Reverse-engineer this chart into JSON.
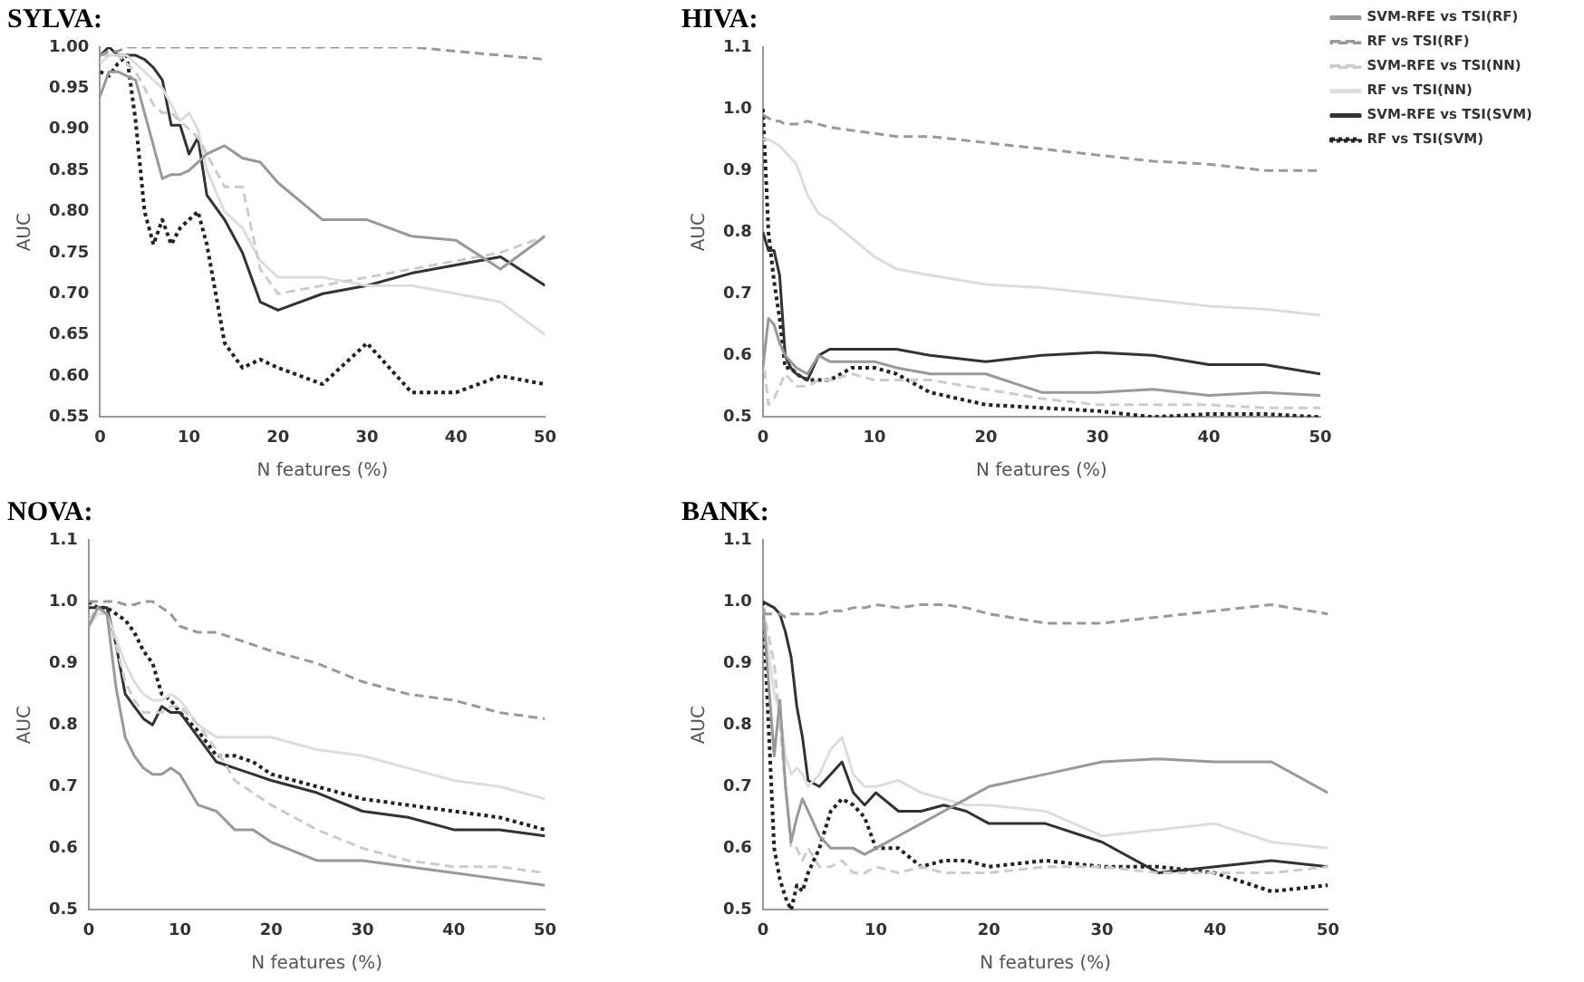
{
  "chart_data": [
    {
      "type": "line",
      "title": "SYLVA:",
      "xlabel": "N features (%)",
      "ylabel": "AUC",
      "x": [
        0,
        1,
        2,
        3,
        4,
        5,
        6,
        7,
        8,
        9,
        10,
        11,
        12,
        14,
        16,
        18,
        20,
        25,
        30,
        35,
        40,
        45,
        50
      ],
      "xlim": [
        0,
        50
      ],
      "xticks": [
        0,
        10,
        20,
        30,
        40,
        50
      ],
      "ylim": [
        0.55,
        1.0
      ],
      "yticks": [
        0.55,
        {
          "value": 0.6,
          "label": "0.60"
        },
        0.65,
        {
          "value": 0.7,
          "label": "0.70"
        },
        0.75,
        {
          "value": 0.8,
          "label": "0.80"
        },
        0.85,
        {
          "value": 0.9,
          "label": "0.90"
        },
        0.95,
        {
          "value": 1.0,
          "label": "1.00"
        }
      ],
      "grid": false,
      "legend": false,
      "marker": "none",
      "series": [
        {
          "color": "#999999",
          "line_style": "solid",
          "values": [
            0.94,
            0.97,
            0.97,
            0.965,
            0.96,
            0.92,
            0.88,
            0.84,
            0.845,
            0.845,
            0.85,
            0.86,
            0.87,
            0.88,
            0.865,
            0.86,
            0.835,
            0.79,
            0.79,
            0.77,
            0.765,
            0.73,
            0.77
          ]
        },
        {
          "color": "#999999",
          "line_style": "dashed",
          "values": [
            0.99,
            0.995,
            0.995,
            1.0,
            1.0,
            1.0,
            1.0,
            1.0,
            1.0,
            1.0,
            1.0,
            1.0,
            1.0,
            1.0,
            1.0,
            1.0,
            1.0,
            1.0,
            1.0,
            1.0,
            0.995,
            0.99,
            0.985
          ]
        },
        {
          "color": "#cccccc",
          "line_style": "dashed",
          "values": [
            0.99,
            0.99,
            0.99,
            0.98,
            0.97,
            0.95,
            0.93,
            0.92,
            0.92,
            0.91,
            0.9,
            0.89,
            0.87,
            0.83,
            0.83,
            0.73,
            0.7,
            0.71,
            0.72,
            0.73,
            0.74,
            0.75,
            0.77
          ]
        },
        {
          "color": "#dddddd",
          "line_style": "solid",
          "values": [
            0.98,
            0.99,
            0.99,
            0.99,
            0.98,
            0.97,
            0.96,
            0.95,
            0.93,
            0.91,
            0.92,
            0.9,
            0.85,
            0.8,
            0.78,
            0.74,
            0.72,
            0.72,
            0.71,
            0.71,
            0.7,
            0.69,
            0.65
          ]
        },
        {
          "color": "#333333",
          "line_style": "solid",
          "values": [
            0.99,
            1.0,
            0.99,
            0.99,
            0.99,
            0.985,
            0.975,
            0.96,
            0.905,
            0.905,
            0.87,
            0.89,
            0.82,
            0.79,
            0.75,
            0.69,
            0.68,
            0.7,
            0.71,
            0.725,
            0.735,
            0.745,
            0.71
          ]
        },
        {
          "color": "#222222",
          "line_style": "dotted",
          "values": [
            0.97,
            0.965,
            0.98,
            0.99,
            0.91,
            0.8,
            0.76,
            0.79,
            0.76,
            0.78,
            0.79,
            0.8,
            0.76,
            0.64,
            0.61,
            0.62,
            0.61,
            0.59,
            0.64,
            0.58,
            0.58,
            0.6,
            0.59
          ]
        }
      ]
    },
    {
      "type": "line",
      "title": "HIVA:",
      "xlabel": "N features (%)",
      "ylabel": "AUC",
      "x": [
        0,
        0.5,
        1,
        1.5,
        2,
        2.5,
        3,
        4,
        5,
        6,
        8,
        10,
        12,
        15,
        20,
        25,
        30,
        35,
        40,
        45,
        50
      ],
      "xlim": [
        0,
        50
      ],
      "xticks": [
        0,
        10,
        20,
        30,
        40,
        50
      ],
      "ylim": [
        0.5,
        1.1
      ],
      "yticks": [
        0.5,
        0.6,
        0.7,
        0.8,
        0.9,
        {
          "value": 1.0,
          "label": "1.0"
        },
        1.1
      ],
      "grid": false,
      "legend": "top right",
      "marker": "none",
      "series": [
        {
          "name": "SVM-RFE vs TSI(RF)",
          "color": "#999999",
          "line_style": "solid",
          "values": [
            0.58,
            0.66,
            0.65,
            0.62,
            0.6,
            0.59,
            0.58,
            0.57,
            0.6,
            0.59,
            0.59,
            0.59,
            0.58,
            0.57,
            0.57,
            0.54,
            0.54,
            0.545,
            0.535,
            0.54,
            0.535
          ]
        },
        {
          "name": "RF vs TSI(RF)",
          "color": "#999999",
          "line_style": "dashed",
          "values": [
            0.99,
            0.985,
            0.98,
            0.98,
            0.975,
            0.975,
            0.975,
            0.98,
            0.975,
            0.97,
            0.965,
            0.96,
            0.955,
            0.955,
            0.945,
            0.935,
            0.925,
            0.915,
            0.91,
            0.9,
            0.9
          ]
        },
        {
          "name": "SVM-RFE vs TSI(NN)",
          "color": "#cccccc",
          "line_style": "dashed",
          "values": [
            0.6,
            0.52,
            0.53,
            0.55,
            0.57,
            0.56,
            0.55,
            0.55,
            0.56,
            0.56,
            0.57,
            0.56,
            0.56,
            0.56,
            0.545,
            0.53,
            0.52,
            0.52,
            0.52,
            0.515,
            0.515
          ]
        },
        {
          "name": "RF vs TSI(NN)",
          "color": "#dddddd",
          "line_style": "solid",
          "values": [
            0.95,
            0.95,
            0.945,
            0.94,
            0.93,
            0.92,
            0.91,
            0.86,
            0.83,
            0.82,
            0.79,
            0.76,
            0.74,
            0.73,
            0.715,
            0.71,
            0.7,
            0.69,
            0.68,
            0.675,
            0.665
          ]
        },
        {
          "name": "SVM-RFE vs TSI(SVM)",
          "color": "#333333",
          "line_style": "solid",
          "values": [
            0.8,
            0.77,
            0.77,
            0.73,
            0.6,
            0.58,
            0.57,
            0.56,
            0.6,
            0.61,
            0.61,
            0.61,
            0.61,
            0.6,
            0.59,
            0.6,
            0.605,
            0.6,
            0.585,
            0.585,
            0.57
          ]
        },
        {
          "name": "RF vs TSI(SVM)",
          "color": "#222222",
          "line_style": "dotted",
          "values": [
            1.0,
            0.8,
            0.72,
            0.66,
            0.58,
            0.58,
            0.57,
            0.56,
            0.56,
            0.56,
            0.58,
            0.58,
            0.57,
            0.54,
            0.52,
            0.515,
            0.51,
            0.5,
            0.505,
            0.505,
            0.5
          ]
        }
      ]
    },
    {
      "type": "line",
      "title": "NOVA:",
      "xlabel": "N features (%)",
      "ylabel": "AUC",
      "x": [
        0,
        1,
        2,
        3,
        4,
        5,
        6,
        7,
        8,
        9,
        10,
        12,
        14,
        16,
        18,
        20,
        25,
        30,
        35,
        40,
        45,
        50
      ],
      "xlim": [
        0,
        50
      ],
      "xticks": [
        0,
        10,
        20,
        30,
        40,
        50
      ],
      "ylim": [
        0.5,
        1.1
      ],
      "yticks": [
        0.5,
        0.6,
        0.7,
        0.8,
        0.9,
        {
          "value": 1.0,
          "label": "1.0"
        },
        1.1
      ],
      "grid": false,
      "legend": false,
      "marker": "none",
      "series": [
        {
          "color": "#999999",
          "line_style": "solid",
          "values": [
            0.96,
            0.99,
            0.98,
            0.86,
            0.78,
            0.75,
            0.73,
            0.72,
            0.72,
            0.73,
            0.72,
            0.67,
            0.66,
            0.63,
            0.63,
            0.61,
            0.58,
            0.58,
            0.57,
            0.56,
            0.55,
            0.54
          ]
        },
        {
          "color": "#999999",
          "line_style": "dashed",
          "values": [
            1.0,
            1.0,
            1.0,
            1.0,
            0.995,
            0.995,
            1.0,
            1.0,
            0.99,
            0.98,
            0.96,
            0.95,
            0.95,
            0.94,
            0.93,
            0.92,
            0.9,
            0.87,
            0.85,
            0.84,
            0.82,
            0.81
          ]
        },
        {
          "color": "#cccccc",
          "line_style": "dashed",
          "values": [
            0.97,
            0.99,
            0.98,
            0.93,
            0.87,
            0.84,
            0.82,
            0.82,
            0.82,
            0.83,
            0.83,
            0.8,
            0.76,
            0.71,
            0.69,
            0.67,
            0.63,
            0.6,
            0.58,
            0.57,
            0.57,
            0.56
          ]
        },
        {
          "color": "#dddddd",
          "line_style": "solid",
          "values": [
            0.96,
            0.98,
            0.98,
            0.94,
            0.9,
            0.87,
            0.85,
            0.84,
            0.84,
            0.85,
            0.84,
            0.8,
            0.78,
            0.78,
            0.78,
            0.78,
            0.76,
            0.75,
            0.73,
            0.71,
            0.7,
            0.68
          ]
        },
        {
          "color": "#333333",
          "line_style": "solid",
          "values": [
            0.99,
            0.99,
            0.99,
            0.93,
            0.85,
            0.83,
            0.81,
            0.8,
            0.83,
            0.82,
            0.82,
            0.78,
            0.74,
            0.73,
            0.72,
            0.71,
            0.69,
            0.66,
            0.65,
            0.63,
            0.63,
            0.62
          ]
        },
        {
          "color": "#222222",
          "line_style": "dotted",
          "values": [
            1.0,
            0.99,
            0.99,
            0.98,
            0.97,
            0.95,
            0.92,
            0.9,
            0.85,
            0.84,
            0.82,
            0.79,
            0.75,
            0.75,
            0.74,
            0.72,
            0.7,
            0.68,
            0.67,
            0.66,
            0.65,
            0.63
          ]
        }
      ]
    },
    {
      "type": "line",
      "title": "BANK:",
      "xlabel": "N features (%)",
      "ylabel": "AUC",
      "x": [
        0,
        1,
        1.5,
        2,
        2.5,
        3,
        3.5,
        4,
        5,
        6,
        7,
        8,
        9,
        10,
        12,
        14,
        16,
        18,
        20,
        25,
        30,
        35,
        40,
        45,
        50
      ],
      "xlim": [
        0,
        50
      ],
      "xticks": [
        0,
        10,
        20,
        30,
        40,
        50
      ],
      "ylim": [
        0.5,
        1.1
      ],
      "yticks": [
        0.5,
        0.6,
        0.7,
        0.8,
        0.9,
        {
          "value": 1.0,
          "label": "1.0"
        },
        1.1
      ],
      "grid": false,
      "legend": false,
      "marker": "none",
      "series": [
        {
          "color": "#999999",
          "line_style": "solid",
          "values": [
            0.99,
            0.75,
            0.84,
            0.7,
            0.61,
            0.65,
            0.68,
            0.66,
            0.62,
            0.6,
            0.6,
            0.6,
            0.59,
            0.6,
            0.62,
            0.64,
            0.66,
            0.68,
            0.7,
            0.72,
            0.74,
            0.745,
            0.74,
            0.74,
            0.69
          ]
        },
        {
          "color": "#999999",
          "line_style": "dashed",
          "values": [
            0.98,
            0.98,
            0.98,
            0.975,
            0.98,
            0.98,
            0.98,
            0.98,
            0.98,
            0.985,
            0.985,
            0.99,
            0.99,
            0.995,
            0.99,
            0.995,
            0.995,
            0.99,
            0.98,
            0.965,
            0.965,
            0.975,
            0.985,
            0.995,
            0.98
          ]
        },
        {
          "color": "#cccccc",
          "line_style": "dashed",
          "values": [
            0.99,
            0.9,
            0.8,
            0.7,
            0.6,
            0.6,
            0.58,
            0.6,
            0.57,
            0.57,
            0.58,
            0.56,
            0.56,
            0.57,
            0.56,
            0.57,
            0.56,
            0.56,
            0.56,
            0.57,
            0.57,
            0.56,
            0.56,
            0.56,
            0.57
          ]
        },
        {
          "color": "#dddddd",
          "line_style": "solid",
          "values": [
            0.99,
            0.85,
            0.82,
            0.75,
            0.72,
            0.73,
            0.72,
            0.7,
            0.72,
            0.76,
            0.78,
            0.72,
            0.7,
            0.7,
            0.71,
            0.69,
            0.68,
            0.67,
            0.67,
            0.66,
            0.62,
            0.63,
            0.64,
            0.61,
            0.6
          ]
        },
        {
          "color": "#333333",
          "line_style": "solid",
          "values": [
            1.0,
            0.99,
            0.98,
            0.95,
            0.91,
            0.83,
            0.78,
            0.71,
            0.7,
            0.72,
            0.74,
            0.69,
            0.67,
            0.69,
            0.66,
            0.66,
            0.67,
            0.66,
            0.64,
            0.64,
            0.61,
            0.56,
            0.57,
            0.58,
            0.57
          ]
        },
        {
          "color": "#222222",
          "line_style": "dotted",
          "values": [
            1.0,
            0.6,
            0.55,
            0.52,
            0.5,
            0.54,
            0.53,
            0.56,
            0.6,
            0.66,
            0.68,
            0.67,
            0.65,
            0.6,
            0.6,
            0.57,
            0.58,
            0.58,
            0.57,
            0.58,
            0.57,
            0.57,
            0.56,
            0.53,
            0.54
          ]
        }
      ]
    }
  ]
}
